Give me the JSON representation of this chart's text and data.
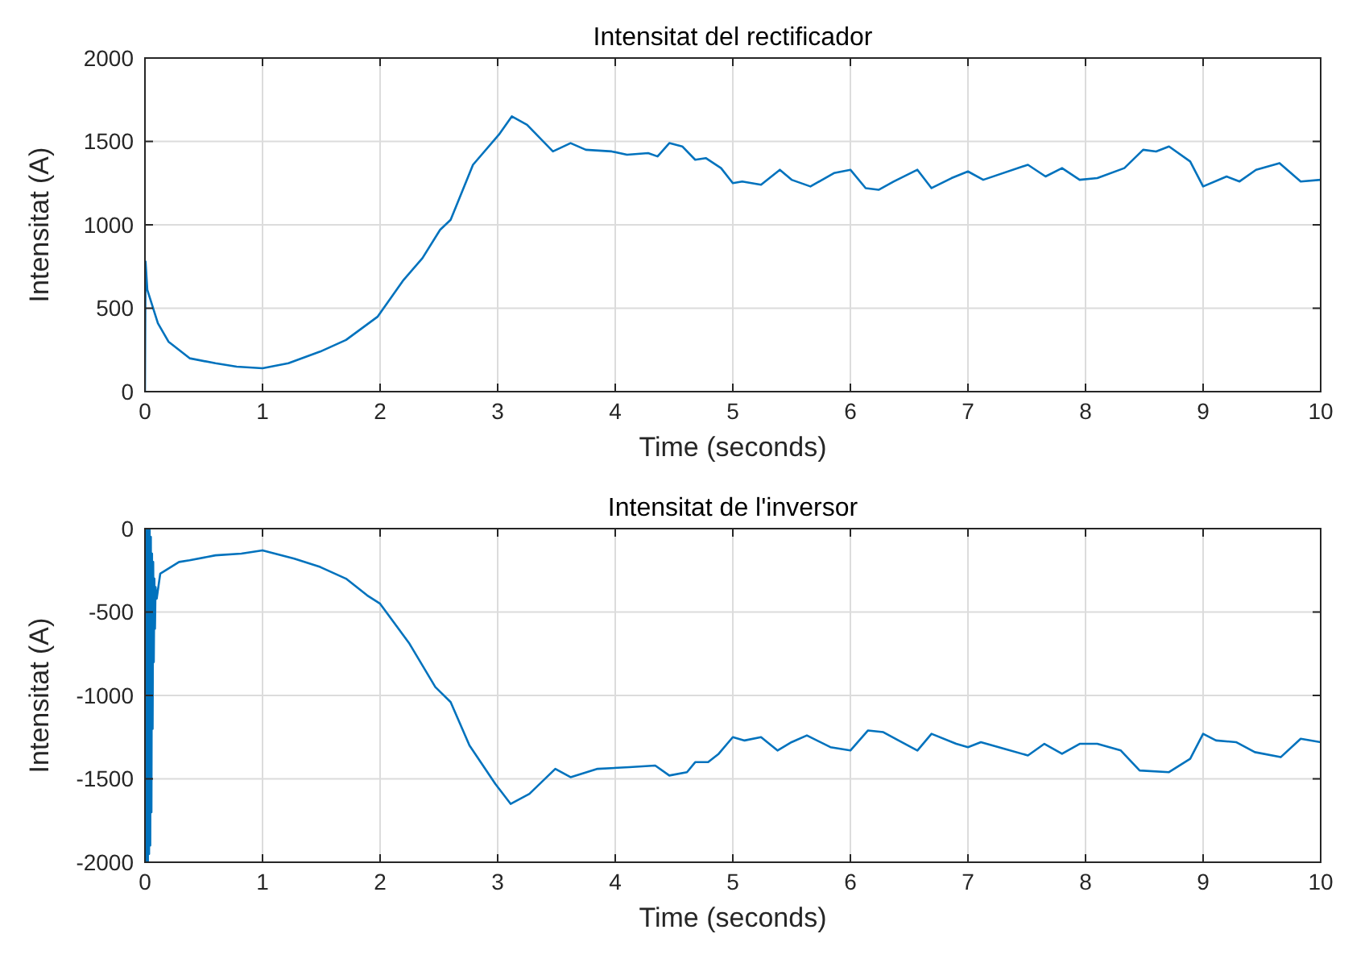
{
  "chart_data": [
    {
      "type": "line",
      "title": "Intensitat del rectificador",
      "xlabel": "Time (seconds)",
      "ylabel": "Intensitat (A)",
      "xlim": [
        0,
        10
      ],
      "xticks": [
        0,
        1,
        2,
        3,
        4,
        5,
        6,
        7,
        8,
        9,
        10
      ],
      "ylim": [
        0,
        2000
      ],
      "yticks": [
        0,
        500,
        1000,
        1500,
        2000
      ],
      "grid": true,
      "series": [
        {
          "color": "#0072bd",
          "x": [
            0,
            0.005,
            0.02,
            0.11,
            0.2,
            0.38,
            0.6,
            0.78,
            1.0,
            1.22,
            1.49,
            1.71,
            1.98,
            2.2,
            2.36,
            2.51,
            2.6,
            2.79,
            3.01,
            3.12,
            3.25,
            3.47,
            3.62,
            3.75,
            3.97,
            4.1,
            4.28,
            4.36,
            4.46,
            4.57,
            4.68,
            4.77,
            4.9,
            5.0,
            5.08,
            5.24,
            5.4,
            5.5,
            5.66,
            5.86,
            6.0,
            6.13,
            6.24,
            6.37,
            6.57,
            6.69,
            6.86,
            7.0,
            7.13,
            7.51,
            7.66,
            7.8,
            7.95,
            8.1,
            8.33,
            8.49,
            8.6,
            8.71,
            8.89,
            9.0,
            9.2,
            9.31,
            9.45,
            9.65,
            9.83,
            10.0
          ],
          "values": [
            0,
            780,
            610,
            410,
            300,
            200,
            170,
            150,
            140,
            170,
            240,
            310,
            450,
            670,
            800,
            970,
            1030,
            1360,
            1540,
            1650,
            1600,
            1440,
            1490,
            1450,
            1440,
            1420,
            1430,
            1410,
            1490,
            1470,
            1390,
            1400,
            1340,
            1250,
            1260,
            1240,
            1330,
            1270,
            1230,
            1310,
            1330,
            1220,
            1210,
            1260,
            1330,
            1220,
            1280,
            1320,
            1270,
            1360,
            1290,
            1340,
            1270,
            1280,
            1340,
            1450,
            1440,
            1470,
            1380,
            1230,
            1290,
            1260,
            1330,
            1370,
            1260,
            1270
          ]
        }
      ]
    },
    {
      "type": "line",
      "title": "Intensitat de l'inversor",
      "xlabel": "Time (seconds)",
      "ylabel": "Intensitat (A)",
      "xlim": [
        0,
        10
      ],
      "xticks": [
        0,
        1,
        2,
        3,
        4,
        5,
        6,
        7,
        8,
        9,
        10
      ],
      "ylim": [
        -2000,
        0
      ],
      "yticks": [
        -2000,
        -1500,
        -1000,
        -500,
        0
      ],
      "grid": true,
      "series": [
        {
          "color": "#0072bd",
          "x": [
            0,
            0.005,
            0.01,
            0.015,
            0.02,
            0.025,
            0.03,
            0.035,
            0.04,
            0.045,
            0.05,
            0.055,
            0.06,
            0.065,
            0.07,
            0.075,
            0.08,
            0.085,
            0.09,
            0.1,
            0.13,
            0.29,
            0.38,
            0.6,
            0.82,
            1.0,
            1.27,
            1.49,
            1.71,
            1.89,
            2.0,
            2.25,
            2.47,
            2.6,
            2.76,
            2.98,
            3.11,
            3.27,
            3.49,
            3.62,
            3.85,
            4.12,
            4.34,
            4.46,
            4.61,
            4.68,
            4.79,
            4.88,
            5.0,
            5.1,
            5.24,
            5.38,
            5.5,
            5.63,
            5.83,
            6.0,
            6.15,
            6.28,
            6.41,
            6.57,
            6.69,
            6.9,
            7.0,
            7.11,
            7.31,
            7.51,
            7.65,
            7.8,
            7.95,
            8.1,
            8.3,
            8.46,
            8.71,
            8.89,
            9.0,
            9.11,
            9.28,
            9.44,
            9.66,
            9.83,
            10.0
          ],
          "values": [
            0,
            -2000,
            0,
            -2000,
            0,
            -2000,
            0,
            -1950,
            0,
            -1900,
            -50,
            -1700,
            -150,
            -1200,
            -200,
            -800,
            -300,
            -600,
            -350,
            -420,
            -270,
            -200,
            -190,
            -160,
            -150,
            -130,
            -180,
            -230,
            -300,
            -400,
            -450,
            -690,
            -950,
            -1040,
            -1300,
            -1530,
            -1650,
            -1590,
            -1440,
            -1490,
            -1440,
            -1430,
            -1420,
            -1480,
            -1460,
            -1400,
            -1400,
            -1350,
            -1250,
            -1270,
            -1250,
            -1330,
            -1280,
            -1240,
            -1310,
            -1330,
            -1210,
            -1220,
            -1270,
            -1330,
            -1230,
            -1290,
            -1310,
            -1280,
            -1320,
            -1360,
            -1290,
            -1350,
            -1290,
            -1290,
            -1330,
            -1450,
            -1460,
            -1380,
            -1230,
            -1270,
            -1280,
            -1340,
            -1370,
            -1260,
            -1280
          ]
        }
      ]
    }
  ]
}
